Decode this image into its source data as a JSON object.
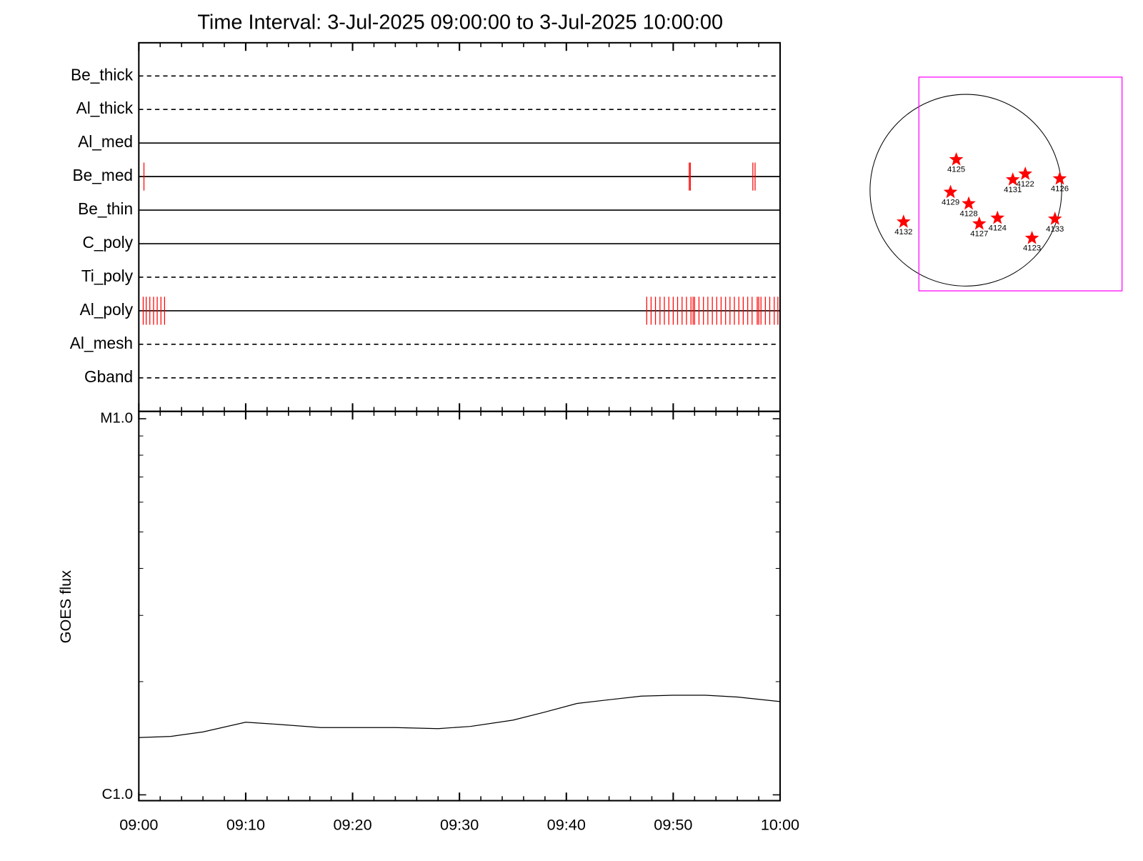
{
  "chart_data": [
    {
      "type": "timeline",
      "title": "Time Interval:  3-Jul-2025 09:00:00 to  3-Jul-2025 10:00:00",
      "categories": [
        "Be_thick",
        "Al_thick",
        "Al_med",
        "Be_med",
        "Be_thin",
        "C_poly",
        "Ti_poly",
        "Al_poly",
        "Al_mesh",
        "Gband"
      ],
      "line_styles": [
        "dashed",
        "dashed",
        "solid",
        "solid",
        "solid",
        "solid",
        "dashed",
        "solid",
        "dashed",
        "dashed"
      ],
      "events": [
        [],
        [],
        [],
        [
          0.48,
          51.5,
          51.6,
          57.45,
          57.66
        ],
        [],
        [],
        [],
        [
          0.41,
          0.69,
          1.03,
          1.38,
          1.72,
          2.07,
          2.41,
          47.52,
          47.93,
          48.34,
          48.76,
          49.17,
          49.59,
          50.0,
          50.41,
          50.83,
          51.24,
          51.66,
          51.86,
          52.0,
          52.41,
          52.83,
          53.24,
          53.66,
          54.07,
          54.48,
          54.9,
          55.31,
          55.72,
          56.14,
          56.55,
          56.97,
          57.38,
          57.86,
          58.0,
          58.21,
          58.62,
          59.03,
          59.45,
          59.79
        ],
        [],
        []
      ],
      "event_color": "#ff0000",
      "xlim": [
        0,
        60
      ]
    },
    {
      "type": "line",
      "y_label": "GOES flux",
      "x": [
        0,
        3,
        6,
        10,
        13,
        17,
        20,
        24,
        28,
        31,
        35,
        38,
        41,
        44,
        47,
        50,
        53,
        56,
        60
      ],
      "values": [
        1.42e-06,
        1.43e-06,
        1.47e-06,
        1.56e-06,
        1.54e-06,
        1.51e-06,
        1.51e-06,
        1.51e-06,
        1.5e-06,
        1.52e-06,
        1.58e-06,
        1.66e-06,
        1.75e-06,
        1.79e-06,
        1.83e-06,
        1.84e-06,
        1.84e-06,
        1.82e-06,
        1.77e-06
      ],
      "color": "#000000",
      "xlim": [
        0,
        60
      ],
      "xticks": [
        {
          "value": 0,
          "label": "09:00"
        },
        {
          "value": 10,
          "label": "09:10"
        },
        {
          "value": 20,
          "label": "09:20"
        },
        {
          "value": 30,
          "label": "09:30"
        },
        {
          "value": 40,
          "label": "09:40"
        },
        {
          "value": 50,
          "label": "09:50"
        },
        {
          "value": 60,
          "label": "10:00"
        }
      ],
      "minor_xticks": [
        2,
        4,
        6,
        8,
        12,
        14,
        16,
        18,
        22,
        24,
        26,
        28,
        32,
        34,
        36,
        38,
        42,
        44,
        46,
        48,
        52,
        54,
        56,
        58
      ],
      "ylim": [
        9.65e-07,
        1.046e-05
      ],
      "log": true,
      "yticks": [
        {
          "value": 1e-06,
          "label": "C1.0"
        },
        {
          "value": 1e-05,
          "label": "M1.0"
        }
      ],
      "minor_yticks": [
        2e-06,
        3e-06,
        4e-06,
        5e-06,
        6e-06,
        7e-06,
        8e-06,
        9e-06
      ]
    },
    {
      "type": "map",
      "labels": [
        "4125",
        "4122",
        "4131",
        "4126",
        "4129",
        "4128",
        "4124",
        "4127",
        "4133",
        "4123",
        "4132"
      ],
      "x": [
        -0.1,
        0.62,
        0.49,
        0.98,
        -0.16,
        0.03,
        0.33,
        0.14,
        0.93,
        0.69,
        -0.65
      ],
      "y": [
        0.32,
        0.17,
        0.11,
        0.12,
        -0.02,
        -0.14,
        -0.29,
        -0.35,
        -0.3,
        -0.5,
        -0.33
      ],
      "color": "#ff0000",
      "fov": {
        "xlim": [
          -0.49,
          1.63
        ],
        "ylim": [
          -1.05,
          1.18
        ],
        "color": "#ff00ff"
      }
    }
  ]
}
